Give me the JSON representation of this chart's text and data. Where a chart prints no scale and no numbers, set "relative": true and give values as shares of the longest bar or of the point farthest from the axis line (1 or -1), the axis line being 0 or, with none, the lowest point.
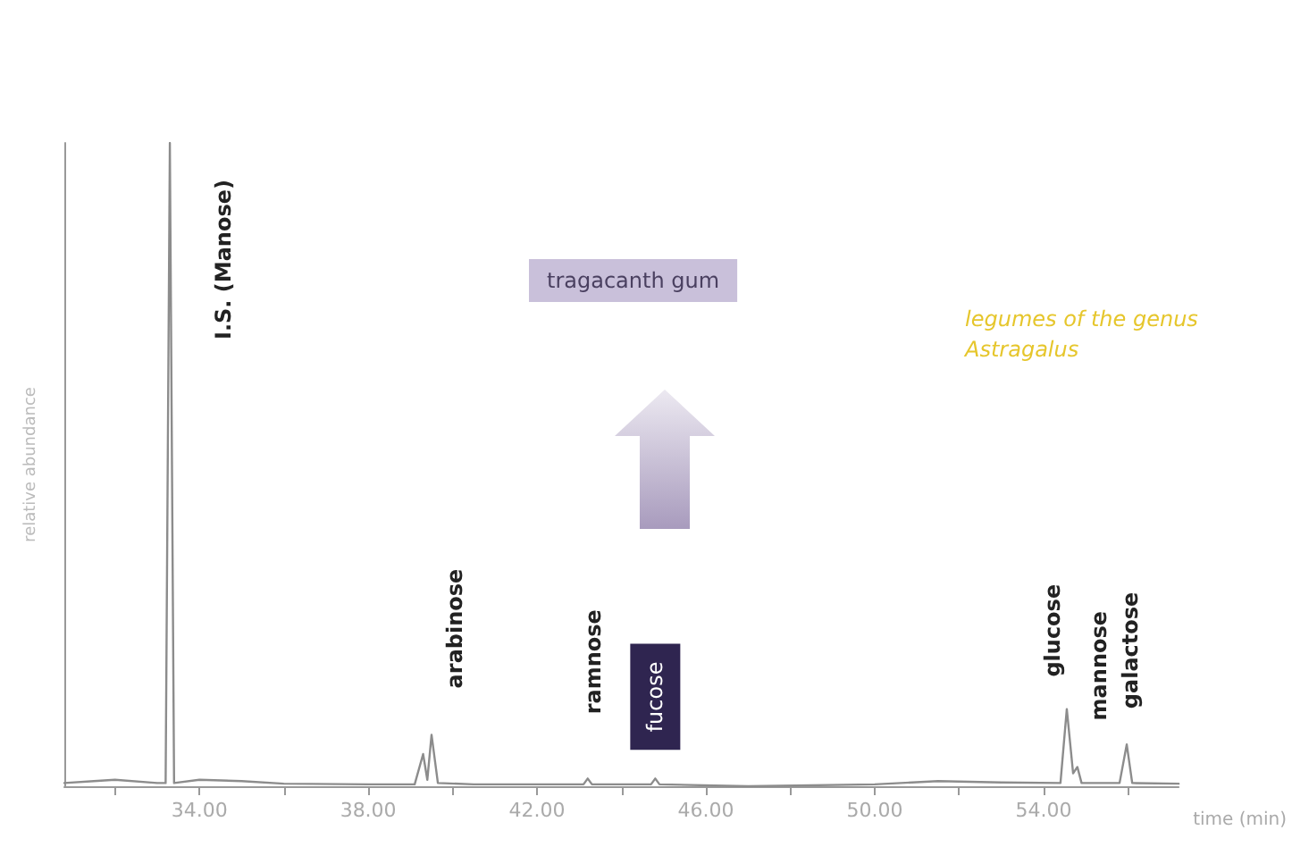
{
  "chart_data": {
    "type": "line",
    "relative": true,
    "xlabel": "time (min)",
    "ylabel": "relative abundance",
    "xlim": [
      30.8,
      57.2
    ],
    "xticks": [
      {
        "value": 32,
        "label": null
      },
      {
        "value": 34,
        "label": "34.00"
      },
      {
        "value": 36,
        "label": null
      },
      {
        "value": 38,
        "label": "38.00"
      },
      {
        "value": 40,
        "label": null
      },
      {
        "value": 42,
        "label": "42.00"
      },
      {
        "value": 44,
        "label": null
      },
      {
        "value": 46,
        "label": "46.00"
      },
      {
        "value": 48,
        "label": null
      },
      {
        "value": 50,
        "label": "50.00"
      },
      {
        "value": 52,
        "label": null
      },
      {
        "value": 54,
        "label": "54.00"
      },
      {
        "value": 56,
        "label": null
      }
    ],
    "grid": false,
    "marker": "none",
    "line_style": "solid",
    "series": [
      {
        "color": "#8c8c8c",
        "x": [
          30.8,
          31.5,
          32.0,
          33.0,
          33.2,
          33.3,
          33.4,
          34.0,
          35.0,
          36.0,
          38.0,
          39.1,
          39.3,
          39.4,
          39.5,
          39.65,
          40.5,
          43.1,
          43.2,
          43.3,
          44.7,
          44.8,
          44.9,
          47.0,
          50.0,
          51.5,
          53.0,
          54.4,
          54.55,
          54.7,
          54.8,
          54.9,
          55.8,
          55.97,
          56.1,
          57.2
        ],
        "values": [
          0.005,
          0.008,
          0.01,
          0.005,
          0.005,
          1.0,
          0.005,
          0.01,
          0.008,
          0.004,
          0.003,
          0.003,
          0.05,
          0.01,
          0.08,
          0.005,
          0.003,
          0.003,
          0.012,
          0.003,
          0.003,
          0.012,
          0.003,
          0.0,
          0.003,
          0.008,
          0.006,
          0.005,
          0.12,
          0.02,
          0.03,
          0.005,
          0.005,
          0.065,
          0.005,
          0.004
        ]
      }
    ],
    "annotations": [
      "tragacanth gum",
      "legumes of the genus Astragalus",
      "I.S. (Manose)",
      {
        "text": "arabinose",
        "x": 39.5,
        "y": 0.08
      },
      {
        "text": "ramnose",
        "x": 43.2,
        "y": 0.012
      },
      {
        "text": "fucose",
        "x": 44.8,
        "y": 0.012
      },
      {
        "text": "glucose",
        "x": 54.55,
        "y": 0.12
      },
      {
        "text": "mannose",
        "x": 54.8,
        "y": 0.03
      },
      {
        "text": "galactose",
        "x": 55.97,
        "y": 0.065
      }
    ]
  }
}
